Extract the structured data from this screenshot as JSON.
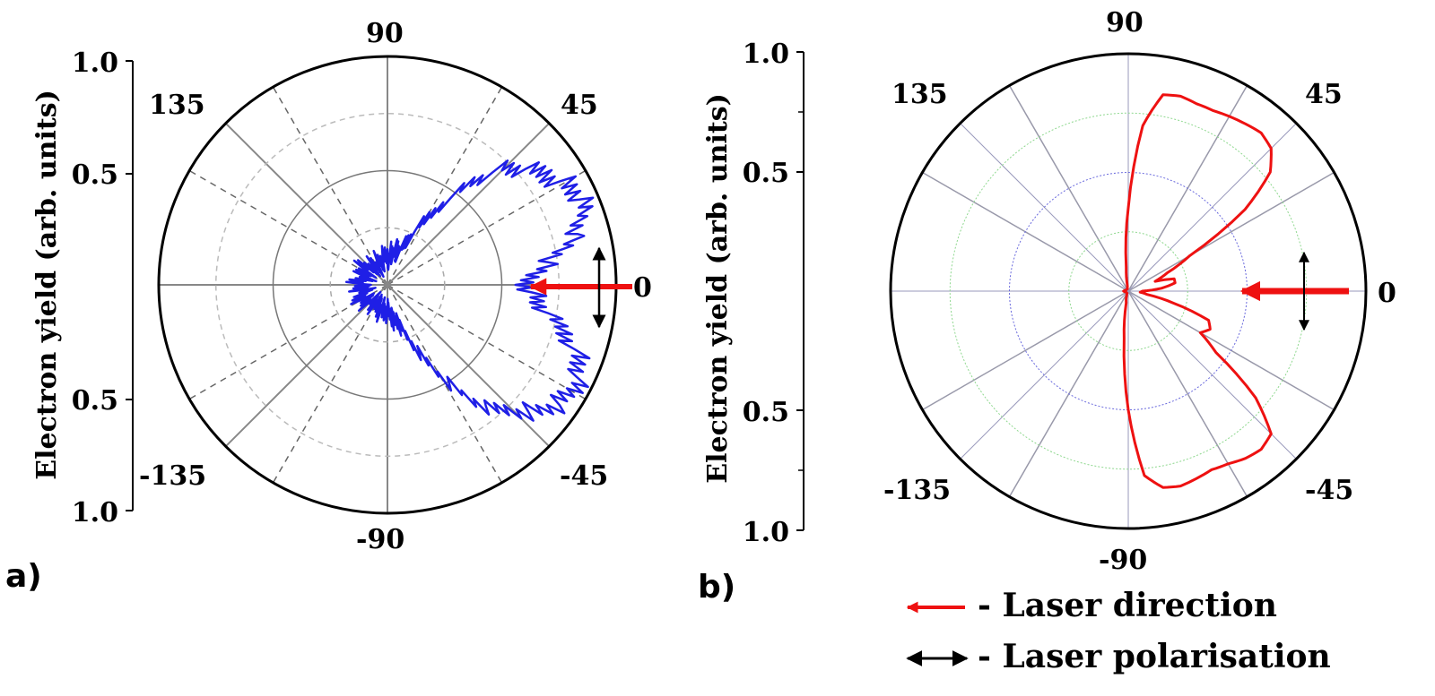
{
  "chart_data": [
    {
      "type": "polar-line",
      "panel_label": "a)",
      "ylabel": "Electron yield (arb. units)",
      "radial_ticks": [
        "1.0",
        "0.5",
        "0.5",
        "1.0"
      ],
      "radial_range": [
        0,
        1.0
      ],
      "angle_ticks": [
        "0",
        "45",
        "90",
        "135",
        "-135",
        "-90",
        "-45"
      ],
      "series": [
        {
          "color": "#1f1fe6",
          "theta_deg": [
            0,
            5,
            10,
            15,
            20,
            25,
            30,
            35,
            40,
            45,
            50,
            55,
            60,
            65,
            70,
            75,
            80,
            85,
            90,
            100,
            110,
            120,
            130,
            140,
            150,
            160,
            170,
            180,
            -170,
            -160,
            -150,
            -140,
            -130,
            -120,
            -110,
            -100,
            -90,
            -85,
            -80,
            -75,
            -70,
            -65,
            -60,
            -55,
            -50,
            -45,
            -40,
            -35,
            -30,
            -25,
            -20,
            -15,
            -10,
            -5
          ],
          "r": [
            0.62,
            0.65,
            0.75,
            0.86,
            0.91,
            0.92,
            0.89,
            0.84,
            0.78,
            0.72,
            0.6,
            0.45,
            0.32,
            0.22,
            0.17,
            0.15,
            0.14,
            0.13,
            0.12,
            0.11,
            0.1,
            0.1,
            0.11,
            0.12,
            0.12,
            0.11,
            0.12,
            0.12,
            0.11,
            0.12,
            0.12,
            0.11,
            0.1,
            0.11,
            0.1,
            0.12,
            0.12,
            0.13,
            0.15,
            0.17,
            0.22,
            0.32,
            0.45,
            0.6,
            0.72,
            0.78,
            0.86,
            0.92,
            0.93,
            0.92,
            0.88,
            0.8,
            0.7,
            0.64
          ]
        }
      ],
      "polarization_arrow": true,
      "laser_arrow": true
    },
    {
      "type": "polar-line",
      "panel_label": "b)",
      "ylabel": "Electron yield (arb. units)",
      "radial_ticks": [
        "1.0",
        "0.5",
        "0.5",
        "1.0"
      ],
      "radial_range": [
        0,
        1.0
      ],
      "angle_ticks": [
        "0",
        "45",
        "90",
        "135",
        "-135",
        "-90",
        "-45"
      ],
      "series": [
        {
          "color": "#ee1111",
          "theta_deg": [
            0,
            5,
            10,
            15,
            20,
            25,
            30,
            35,
            40,
            45,
            50,
            55,
            60,
            65,
            70,
            75,
            80,
            85,
            90,
            95,
            100,
            110,
            120,
            140,
            160,
            180,
            -160,
            -140,
            -120,
            -110,
            -100,
            -95,
            -90,
            -85,
            -80,
            -75,
            -70,
            -65,
            -60,
            -55,
            -50,
            -45,
            -40,
            -35,
            -30,
            -25,
            -20,
            -15,
            -10,
            -5
          ],
          "r": [
            0.06,
            0.14,
            0.2,
            0.2,
            0.12,
            0.18,
            0.3,
            0.6,
            0.78,
            0.85,
            0.87,
            0.86,
            0.85,
            0.84,
            0.84,
            0.85,
            0.84,
            0.7,
            0.35,
            0.1,
            0.02,
            0.01,
            0.01,
            0.01,
            0.01,
            0.02,
            0.01,
            0.01,
            0.01,
            0.02,
            0.05,
            0.2,
            0.5,
            0.78,
            0.84,
            0.85,
            0.84,
            0.83,
            0.84,
            0.86,
            0.87,
            0.85,
            0.7,
            0.45,
            0.35,
            0.38,
            0.36,
            0.2,
            0.08,
            0.05
          ]
        }
      ],
      "polarization_arrow": true,
      "laser_arrow": true
    }
  ],
  "legend": {
    "laser_direction": "- Laser direction",
    "laser_polarisation": "- Laser polarisation"
  }
}
